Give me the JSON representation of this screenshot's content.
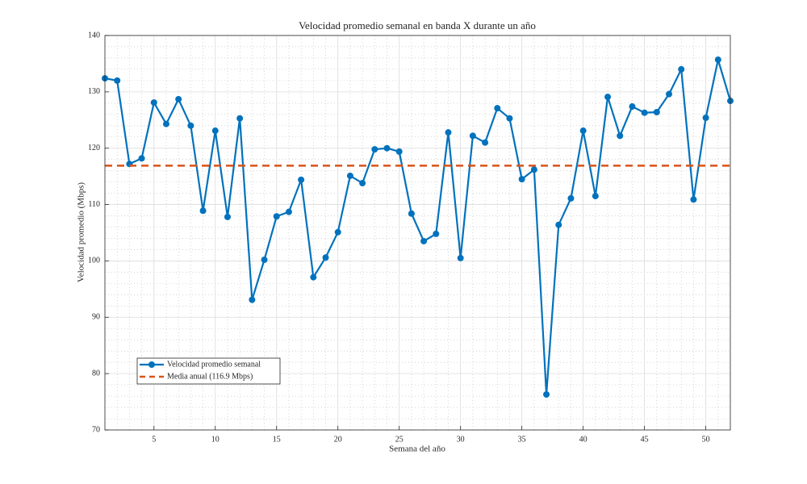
{
  "chart_data": {
    "type": "line",
    "title": "Velocidad promedio semanal en banda X durante un año",
    "xlabel": "Semana del año",
    "ylabel": "Velocidad promedio (Mbps)",
    "x": [
      1,
      2,
      3,
      4,
      5,
      6,
      7,
      8,
      9,
      10,
      11,
      12,
      13,
      14,
      15,
      16,
      17,
      18,
      19,
      20,
      21,
      22,
      23,
      24,
      25,
      26,
      27,
      28,
      29,
      30,
      31,
      32,
      33,
      34,
      35,
      36,
      37,
      38,
      39,
      40,
      41,
      42,
      43,
      44,
      45,
      46,
      47,
      48,
      49,
      50,
      51,
      52
    ],
    "series": [
      {
        "name": "Velocidad promedio semanal",
        "color": "#0072bd",
        "values": [
          132.4,
          132.0,
          117.2,
          118.2,
          128.1,
          124.3,
          128.7,
          124.0,
          108.9,
          123.1,
          107.8,
          125.3,
          93.1,
          100.2,
          107.9,
          108.7,
          114.4,
          97.1,
          100.6,
          105.1,
          115.1,
          113.8,
          119.8,
          120.0,
          119.4,
          108.4,
          103.5,
          104.8,
          122.8,
          100.5,
          122.2,
          121.0,
          127.1,
          125.3,
          114.5,
          116.2,
          76.3,
          106.4,
          111.1,
          123.1,
          111.5,
          129.1,
          122.2,
          127.4,
          126.3,
          126.4,
          129.6,
          134.0,
          110.9,
          125.4,
          135.7,
          128.4
        ]
      }
    ],
    "hlines": [
      {
        "name": "Media anual (116.9 Mbps)",
        "value": 116.9,
        "color": "#d95319"
      }
    ],
    "xlim": [
      1,
      52
    ],
    "xticks": [
      5,
      10,
      15,
      20,
      25,
      30,
      35,
      40,
      45,
      50
    ],
    "ylim": [
      70,
      140
    ],
    "yticks": [
      70,
      80,
      90,
      100,
      110,
      120,
      130,
      140
    ],
    "grid": true,
    "minor_grid": true,
    "legend": "lower left"
  }
}
